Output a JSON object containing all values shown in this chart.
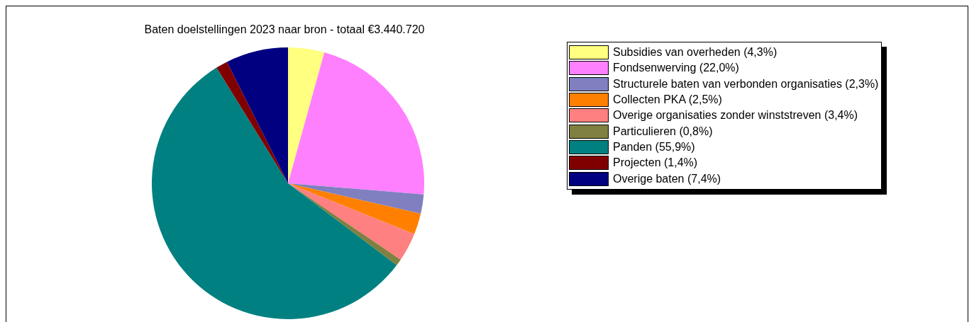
{
  "chart_data": {
    "type": "pie",
    "title": "Baten doelstellingen 2023 naar bron - totaal €3.440.720",
    "categories": [
      "Subsidies van overheden (4,3%)",
      "Fondsenwerving (22,0%)",
      "Structurele baten van verbonden organisaties (2,3%)",
      "Collecten PKA (2,5%)",
      "Overige organisaties zonder winststreven (3,4%)",
      "Particulieren (0,8%)",
      "Panden (55,9%)",
      "Projecten (1,4%)",
      "Overige baten (7,4%)"
    ],
    "values": [
      4.3,
      22.0,
      2.3,
      2.5,
      3.4,
      0.8,
      55.9,
      1.4,
      7.4
    ],
    "colors": [
      "#ffff80",
      "#ff80ff",
      "#8080c0",
      "#ff8000",
      "#ff8080",
      "#808040",
      "#008080",
      "#800000",
      "#000080"
    ],
    "legend": "right"
  }
}
